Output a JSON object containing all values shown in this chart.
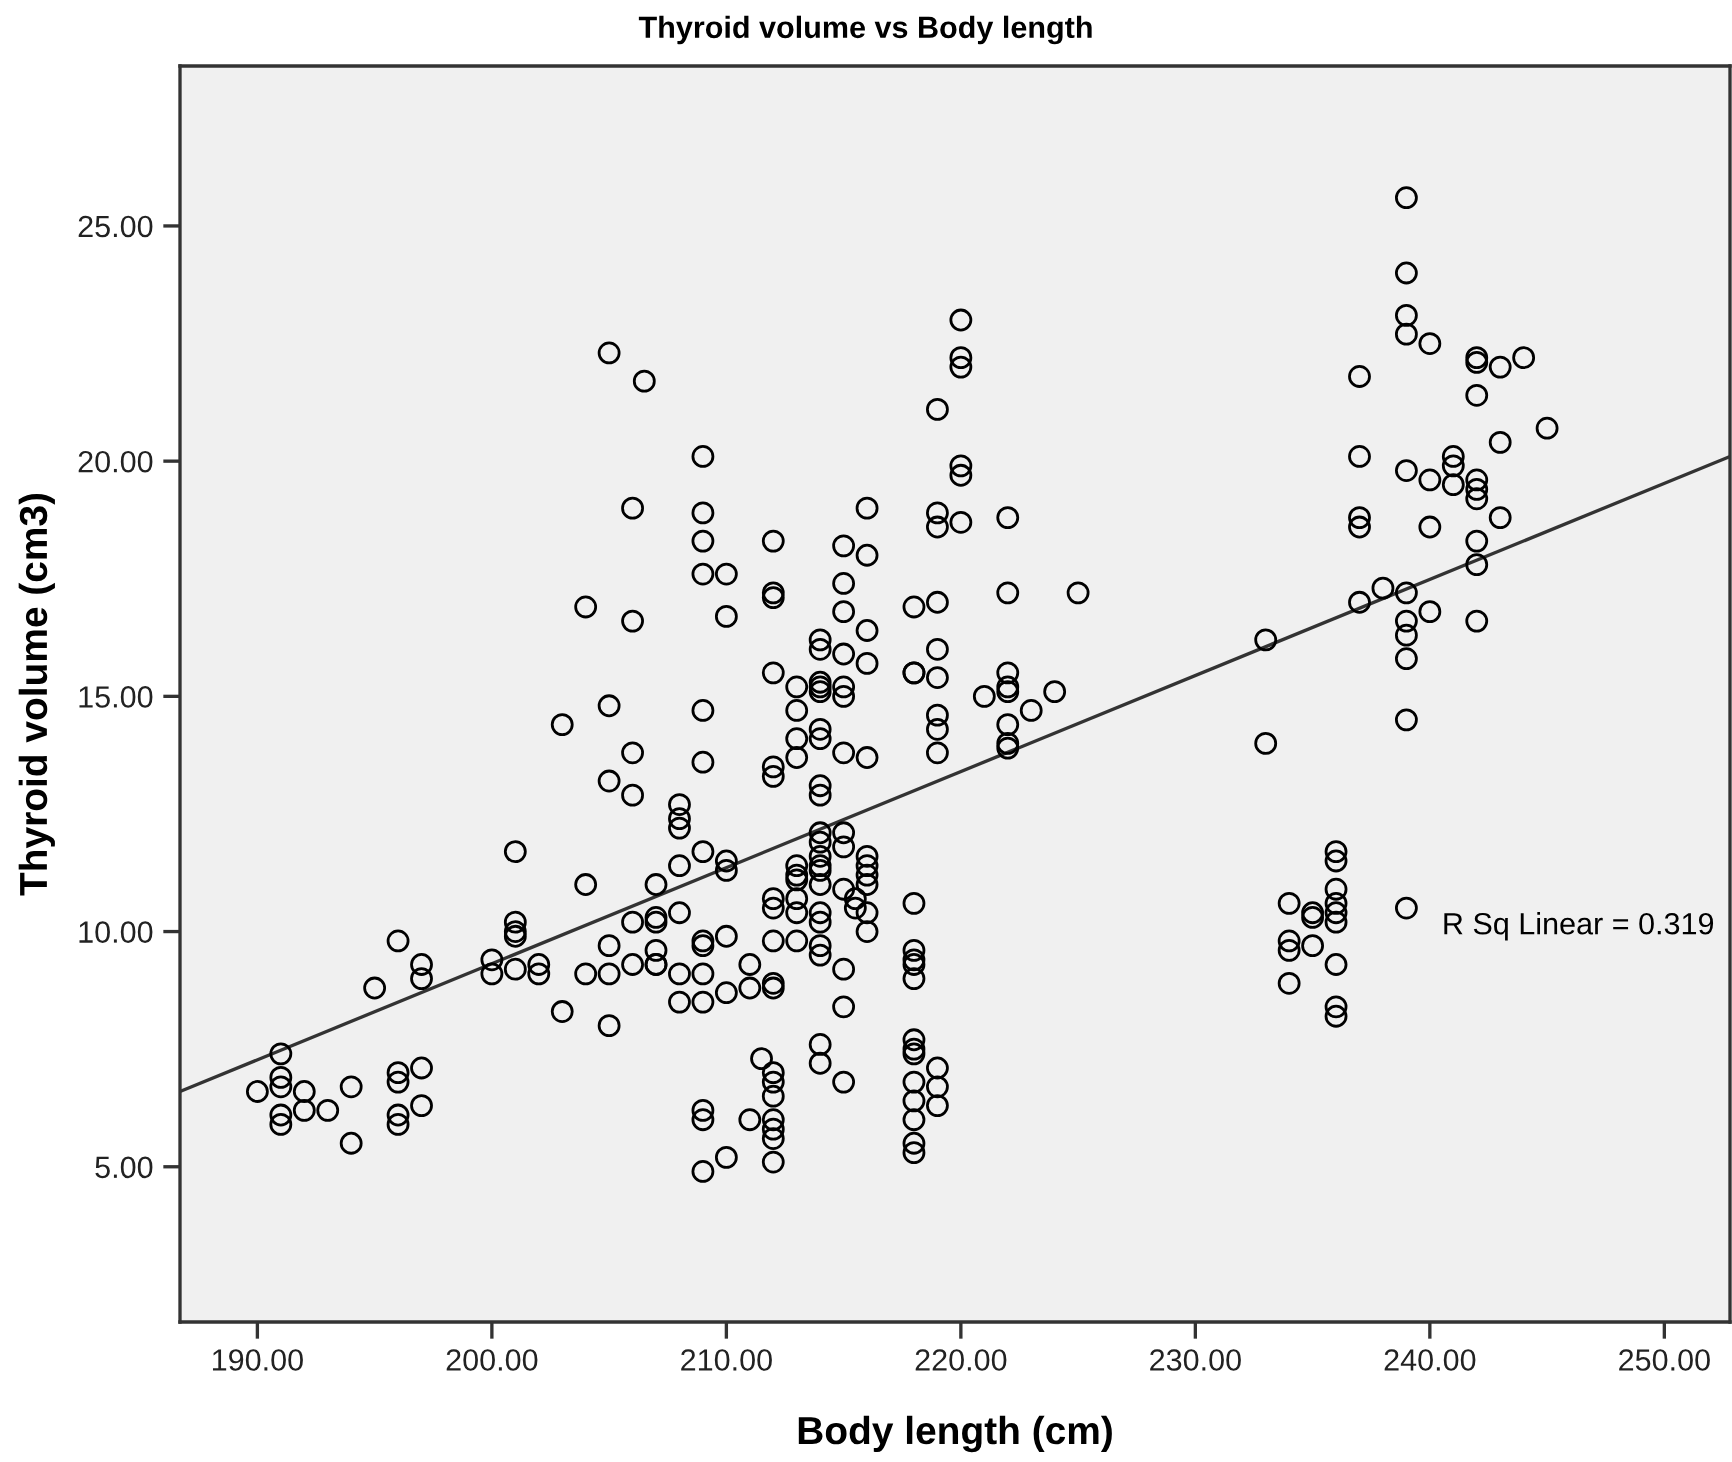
{
  "chart_data": {
    "type": "scatter",
    "title": "Thyroid volume vs Body length",
    "xlabel": "Body length (cm)",
    "ylabel": "Thyroid volume (cm3)",
    "xlim": [
      186.7,
      252.8
    ],
    "ylim": [
      1.7,
      28.4
    ],
    "xticks": [
      {
        "value": 190,
        "label": "190.00"
      },
      {
        "value": 200,
        "label": "200.00"
      },
      {
        "value": 210,
        "label": "210.00"
      },
      {
        "value": 220,
        "label": "220.00"
      },
      {
        "value": 230,
        "label": "230.00"
      },
      {
        "value": 240,
        "label": "240.00"
      },
      {
        "value": 250,
        "label": "250.00"
      }
    ],
    "yticks": [
      {
        "value": 5,
        "label": "5.00"
      },
      {
        "value": 10,
        "label": "10.00"
      },
      {
        "value": 15,
        "label": "15.00"
      },
      {
        "value": 20,
        "label": "20.00"
      },
      {
        "value": 25,
        "label": "25.00"
      }
    ],
    "grid": false,
    "annotations": [
      "R Sq Linear = 0.319"
    ],
    "series": [
      {
        "color": "#000000",
        "marker": "circle",
        "x": [
          190,
          191,
          191,
          191,
          191,
          191,
          192,
          192,
          193,
          194,
          194,
          195,
          196,
          196,
          196,
          196,
          196,
          197,
          197,
          197,
          197,
          200,
          200,
          201,
          201,
          201,
          201,
          201,
          202,
          202,
          203,
          203,
          204,
          204,
          204,
          205,
          205,
          205,
          205,
          205,
          205,
          206,
          206,
          206,
          206,
          206,
          206,
          206.5,
          207,
          207,
          207,
          207,
          207,
          207,
          208,
          208,
          208,
          208,
          208,
          208,
          208,
          209,
          209,
          209,
          209,
          209,
          209,
          209,
          209,
          209,
          209,
          209,
          209,
          209,
          209,
          210,
          210,
          210,
          210,
          210,
          210,
          210,
          211,
          211,
          211,
          211.5,
          212,
          212,
          212,
          212,
          212,
          212,
          212,
          212,
          212,
          212,
          212,
          212,
          212,
          212,
          212,
          212,
          212,
          212,
          213,
          213,
          213,
          213,
          213,
          213,
          213,
          213,
          213,
          213,
          214,
          214,
          214,
          214,
          214,
          214,
          214,
          214,
          214,
          214,
          214,
          214,
          214,
          214,
          214,
          214,
          214,
          214,
          214,
          214,
          214,
          215,
          215,
          215,
          215,
          215,
          215,
          215,
          215,
          215,
          215,
          215,
          215,
          215,
          215.5,
          215.5,
          216,
          216,
          216,
          216,
          216,
          216,
          216,
          216,
          216,
          216,
          216,
          218,
          218,
          218,
          218,
          218,
          218,
          218,
          218,
          218,
          218,
          218,
          218,
          218,
          218,
          218,
          218,
          219,
          219,
          219,
          219,
          219,
          219,
          219,
          219,
          219,
          219,
          219,
          219,
          220,
          220,
          220,
          220,
          220,
          220,
          221,
          222,
          222,
          222,
          222,
          222,
          222,
          222,
          222,
          223,
          224,
          225,
          233,
          233,
          234,
          234,
          234,
          234,
          235,
          235,
          235,
          236,
          236,
          236,
          236,
          236,
          236,
          236,
          236,
          236,
          237,
          237,
          237,
          237,
          237,
          238,
          239,
          239,
          239,
          239,
          239,
          239,
          239,
          239,
          239,
          239,
          239,
          240,
          240,
          240,
          240,
          241,
          241,
          241,
          242,
          242,
          242,
          242,
          242,
          242,
          242,
          242,
          242,
          243,
          243,
          243,
          244,
          245
        ],
        "values": [
          6.6,
          7.4,
          6.9,
          6.7,
          6.1,
          5.9,
          6.6,
          6.2,
          6.2,
          6.7,
          5.5,
          8.8,
          7.0,
          6.8,
          6.1,
          5.9,
          9.8,
          9.3,
          9.0,
          7.1,
          6.3,
          9.4,
          9.1,
          11.7,
          10.2,
          10.0,
          9.9,
          9.2,
          9.3,
          9.1,
          8.3,
          14.4,
          11.0,
          9.1,
          16.9,
          9.7,
          9.1,
          8.0,
          13.2,
          22.3,
          14.8,
          13.8,
          12.9,
          10.2,
          9.3,
          19.0,
          16.6,
          21.7,
          11.0,
          10.3,
          10.2,
          9.6,
          9.3,
          9.3,
          12.7,
          12.4,
          12.2,
          11.4,
          10.4,
          9.1,
          8.5,
          20.1,
          18.9,
          18.3,
          17.6,
          14.7,
          13.6,
          11.7,
          9.8,
          9.7,
          9.1,
          8.5,
          6.2,
          6.0,
          4.9,
          17.6,
          16.7,
          11.5,
          11.3,
          9.9,
          8.7,
          5.2,
          9.3,
          8.8,
          6.0,
          7.3,
          18.3,
          17.2,
          17.1,
          15.5,
          13.5,
          13.3,
          10.7,
          10.5,
          9.8,
          8.9,
          8.8,
          7.0,
          6.8,
          6.5,
          6.0,
          5.8,
          5.6,
          5.1,
          15.2,
          14.7,
          14.1,
          13.7,
          11.4,
          11.2,
          11.1,
          10.7,
          10.4,
          9.8,
          16.2,
          16.0,
          15.3,
          15.2,
          15.1,
          14.3,
          14.1,
          13.1,
          12.9,
          12.1,
          11.9,
          11.6,
          11.4,
          11.3,
          11.0,
          10.4,
          10.2,
          9.7,
          9.5,
          7.6,
          7.2,
          18.2,
          17.4,
          16.8,
          15.9,
          15.2,
          15.0,
          13.8,
          12.1,
          11.8,
          10.9,
          9.2,
          8.4,
          6.8,
          10.7,
          10.5,
          19.0,
          18.0,
          16.4,
          15.7,
          13.7,
          11.6,
          11.4,
          11.2,
          11.0,
          10.4,
          10.0,
          16.9,
          15.5,
          15.5,
          10.6,
          9.6,
          9.4,
          9.3,
          9.0,
          7.7,
          7.5,
          7.4,
          6.8,
          6.4,
          6.0,
          5.5,
          5.3,
          21.1,
          18.9,
          18.6,
          17.0,
          16.0,
          15.4,
          14.6,
          14.3,
          13.8,
          7.1,
          6.7,
          6.3,
          23.0,
          22.2,
          22.0,
          19.9,
          19.7,
          18.7,
          15.0,
          18.8,
          17.2,
          15.5,
          15.2,
          15.1,
          14.4,
          14.0,
          13.9,
          14.7,
          15.1,
          17.2,
          16.2,
          14.0,
          10.6,
          9.8,
          9.6,
          8.9,
          10.4,
          10.3,
          9.7,
          11.7,
          11.5,
          10.9,
          10.6,
          10.4,
          10.2,
          9.3,
          8.4,
          8.2,
          21.8,
          20.1,
          18.8,
          18.6,
          17.0,
          17.3,
          25.6,
          24.0,
          23.1,
          22.7,
          19.8,
          17.2,
          16.6,
          16.3,
          15.8,
          14.5,
          10.5,
          22.5,
          19.6,
          18.6,
          16.8,
          20.1,
          19.9,
          19.5,
          22.2,
          22.1,
          21.4,
          19.6,
          19.4,
          19.2,
          18.3,
          17.8,
          16.6,
          22.0,
          20.4,
          18.8,
          22.2,
          20.7
        ]
      },
      {
        "type": "line",
        "color": "#333333",
        "line_style": "solid",
        "marker": "none",
        "x": [
          186.7,
          252.8
        ],
        "values": [
          6.6,
          20.1
        ]
      }
    ]
  }
}
